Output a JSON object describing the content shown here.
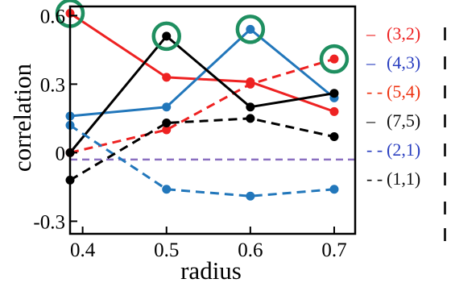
{
  "chart_data": {
    "type": "line",
    "title": "",
    "xlabel": "radius",
    "ylabel": "correlation",
    "x": [
      0.4,
      0.5,
      0.6,
      0.7
    ],
    "xlim": [
      0.385,
      0.725
    ],
    "ylim": [
      -0.355,
      0.64
    ],
    "xticks": [
      {
        "value": 0.4,
        "label": "0.4"
      },
      {
        "value": 0.5,
        "label": "0.5"
      },
      {
        "value": 0.6,
        "label": "0.6"
      },
      {
        "value": 0.7,
        "label": "0.7"
      }
    ],
    "yticks": [
      {
        "value": 0.6,
        "label": "0.6"
      },
      {
        "value": 0.3,
        "label": "0.3"
      },
      {
        "value": 0,
        "label": "0"
      },
      {
        "value": -0.3,
        "label": "-0.3"
      }
    ],
    "grid": false,
    "legend_position": "right, outside plot",
    "reference_line": {
      "y": -0.03,
      "color": "#8a6fc0",
      "style": "dashed"
    },
    "series": [
      {
        "name": "(3,2)",
        "color": "#ee2222",
        "style": "solid",
        "x": [
          0.385,
          0.5,
          0.6,
          0.7
        ],
        "values": [
          0.61,
          0.33,
          0.31,
          0.18
        ]
      },
      {
        "name": "(4,3)",
        "color": "#2277bb",
        "style": "solid",
        "x": [
          0.385,
          0.5,
          0.6,
          0.7
        ],
        "values": [
          0.16,
          0.2,
          0.54,
          0.24
        ]
      },
      {
        "name": "(5,4)",
        "color": "#ee2222",
        "style": "dashed",
        "x": [
          0.385,
          0.5,
          0.6,
          0.7
        ],
        "values": [
          0.0,
          0.1,
          0.3,
          0.41
        ]
      },
      {
        "name": "(7,5)",
        "color": "#000000",
        "style": "solid",
        "x": [
          0.385,
          0.5,
          0.6,
          0.7
        ],
        "values": [
          0.0,
          0.51,
          0.2,
          0.26
        ]
      },
      {
        "name": "(2,1)",
        "color": "#2277bb",
        "style": "dashed",
        "x": [
          0.385,
          0.5,
          0.6,
          0.7
        ],
        "values": [
          0.12,
          -0.16,
          -0.19,
          -0.16
        ]
      },
      {
        "name": "(1,1)",
        "color": "#000000",
        "style": "dashed",
        "x": [
          0.385,
          0.5,
          0.6,
          0.7
        ],
        "values": [
          -0.12,
          0.13,
          0.15,
          0.07
        ]
      }
    ],
    "legend": [
      {
        "marker": "–",
        "label": "(3,2)",
        "color": "#ee2222"
      },
      {
        "marker": "–",
        "label": "(4,3)",
        "color": "#2a3fc0"
      },
      {
        "marker": "- -",
        "label": "(5,4)",
        "color": "#ee3311"
      },
      {
        "marker": "–",
        "label": "(7,5)",
        "color": "#111111"
      },
      {
        "marker": "- -",
        "label": "(2,1)",
        "color": "#2a3fc0"
      },
      {
        "marker": "- -",
        "label": "(1,1)",
        "color": "#111111"
      }
    ],
    "highlights": [
      {
        "series": "(3,2)",
        "x": 0.385,
        "y": 0.61,
        "color": "#1f8f60"
      },
      {
        "series": "(7,5)",
        "x": 0.5,
        "y": 0.51,
        "color": "#1f8f60"
      },
      {
        "series": "(4,3)",
        "x": 0.6,
        "y": 0.54,
        "color": "#1f8f60"
      },
      {
        "series": "(5,4)",
        "x": 0.7,
        "y": 0.41,
        "color": "#1f8f60"
      }
    ]
  }
}
